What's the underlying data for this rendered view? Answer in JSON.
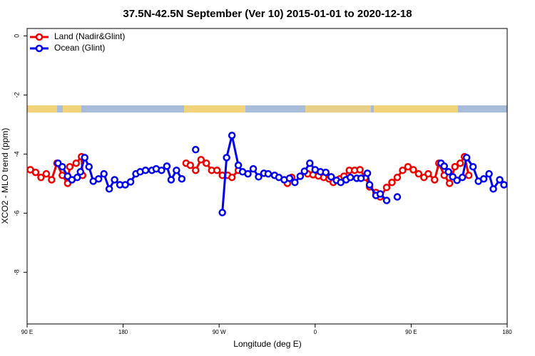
{
  "chart_data": {
    "type": "line",
    "title": "37.5N-42.5N September (Ver 10)   2015-01-01 to 2020-12-18",
    "xlabel": "Longitude (deg E)",
    "ylabel": "XCO2 - MLO trend (ppm)",
    "xlim": [
      90,
      540
    ],
    "ylim": [
      -9.75,
      0.25
    ],
    "xticks": [
      {
        "value": 90,
        "label": "90 E"
      },
      {
        "value": 180,
        "label": "180"
      },
      {
        "value": 270,
        "label": "90 W"
      },
      {
        "value": 360,
        "label": "0"
      },
      {
        "value": 450,
        "label": "90 E"
      },
      {
        "value": 540,
        "label": "180"
      }
    ],
    "yticks": [
      0,
      -2,
      -4,
      -6,
      -8
    ],
    "legend": "top-left",
    "series": [
      {
        "name": "Land (Nadir&Glint)",
        "color": "#ee0000",
        "x": [
          93,
          98,
          103,
          108,
          113,
          118,
          123,
          128,
          130,
          136,
          141,
          142,
          null,
          239,
          243,
          248,
          253,
          258,
          263,
          268,
          273,
          278,
          282,
          288,
          null,
          334,
          338,
          null,
          353,
          358,
          363,
          368,
          373,
          377,
          383,
          387,
          392,
          397,
          402,
          407,
          411,
          417,
          421,
          427,
          432,
          437,
          442,
          447,
          452,
          457,
          462,
          466,
          472,
          476,
          481,
          486,
          491,
          496,
          500,
          504
        ],
        "values": [
          -4.53,
          -4.62,
          -4.79,
          -4.67,
          -4.87,
          -4.31,
          -4.72,
          -4.99,
          -4.43,
          -4.31,
          -4.09,
          -4.72,
          null,
          -4.31,
          -4.38,
          -4.55,
          -4.19,
          -4.31,
          -4.55,
          -4.55,
          -4.72,
          -4.72,
          -4.79,
          -4.55,
          null,
          -4.99,
          -4.79,
          null,
          -4.67,
          -4.7,
          -4.74,
          -4.79,
          -4.84,
          -4.96,
          -4.84,
          -4.75,
          -4.55,
          -4.55,
          -4.53,
          -4.79,
          -5.11,
          -5.3,
          -5.45,
          -5.13,
          -4.96,
          -4.79,
          -4.55,
          -4.43,
          -4.53,
          -4.67,
          -4.79,
          -4.67,
          -4.87,
          -4.31,
          -4.72,
          -4.99,
          -4.43,
          -4.31,
          -4.09,
          -4.72
        ]
      },
      {
        "name": "Ocean (Glint)",
        "color": "#0000ee",
        "x": [
          119,
          123,
          128,
          132,
          137,
          140,
          144,
          148,
          152,
          157,
          162,
          167,
          172,
          177,
          182,
          187,
          192,
          196,
          201,
          207,
          211,
          216,
          221,
          225,
          230,
          235,
          null,
          248,
          null,
          273,
          277,
          282,
          288,
          292,
          297,
          302,
          307,
          312,
          316,
          322,
          326,
          331,
          336,
          341,
          346,
          350,
          355,
          360,
          365,
          370,
          375,
          380,
          384,
          389,
          393,
          399,
          403,
          409,
          411,
          417,
          421,
          427,
          null,
          437,
          null,
          478,
          481,
          485,
          489,
          493,
          498,
          502,
          508,
          513,
          518,
          523,
          527,
          533,
          537
        ],
        "values": [
          -4.31,
          -4.43,
          -4.75,
          -4.87,
          -4.79,
          -4.6,
          -4.12,
          -4.43,
          -4.92,
          -4.84,
          -4.67,
          -5.18,
          -4.87,
          -5.04,
          -5.04,
          -4.94,
          -4.67,
          -4.6,
          -4.55,
          -4.55,
          -4.5,
          -4.55,
          -4.41,
          -4.87,
          -4.55,
          -4.84,
          null,
          -3.85,
          null,
          -5.98,
          -4.12,
          -3.37,
          -4.38,
          -4.6,
          -4.67,
          -4.5,
          -4.77,
          -4.65,
          -4.67,
          -4.72,
          -4.79,
          -4.87,
          -4.82,
          -4.96,
          -4.75,
          -4.58,
          -4.31,
          -4.53,
          -4.6,
          -4.62,
          -4.77,
          -4.89,
          -4.96,
          -4.87,
          -4.79,
          -4.82,
          -4.82,
          -4.65,
          -5.04,
          -5.4,
          -5.35,
          -5.57,
          null,
          -5.45,
          null,
          -4.31,
          -4.41,
          -4.6,
          -4.77,
          -4.89,
          -4.79,
          -4.12,
          -4.43,
          -4.92,
          -4.84,
          -4.67,
          -5.18,
          -4.87,
          -5.04
        ]
      }
    ]
  }
}
